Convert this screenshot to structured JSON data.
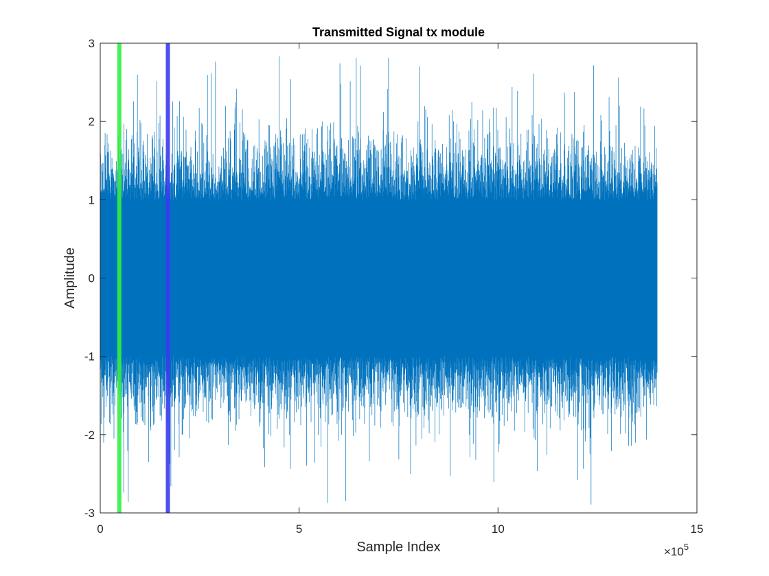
{
  "chart_data": {
    "type": "line",
    "title": "Transmitted Signal tx module",
    "xlabel": "Sample Index",
    "ylabel": "Amplitude",
    "x_exponent_label": "×10",
    "x_exponent": "5",
    "xlim": [
      0,
      1500000
    ],
    "ylim": [
      -3,
      3
    ],
    "x_ticks": [
      0,
      500000,
      1000000,
      1500000
    ],
    "x_tick_labels": [
      "0",
      "5",
      "10",
      "15"
    ],
    "y_ticks": [
      -3,
      -2,
      -1,
      0,
      1,
      2,
      3
    ],
    "y_tick_labels": [
      "-3",
      "-2",
      "-1",
      "0",
      "1",
      "2",
      "3"
    ],
    "grid": false,
    "series": [
      {
        "color": "#0072BD",
        "x_start": 0,
        "x_end": 1400000,
        "core_amplitude": 1.0,
        "peak_amplitude": 2.88,
        "trough_amplitude": -2.9
      }
    ],
    "vertical_lines": [
      {
        "x": 48000,
        "color": "#33ee44"
      },
      {
        "x": 170000,
        "color": "#3a3aee"
      }
    ]
  }
}
